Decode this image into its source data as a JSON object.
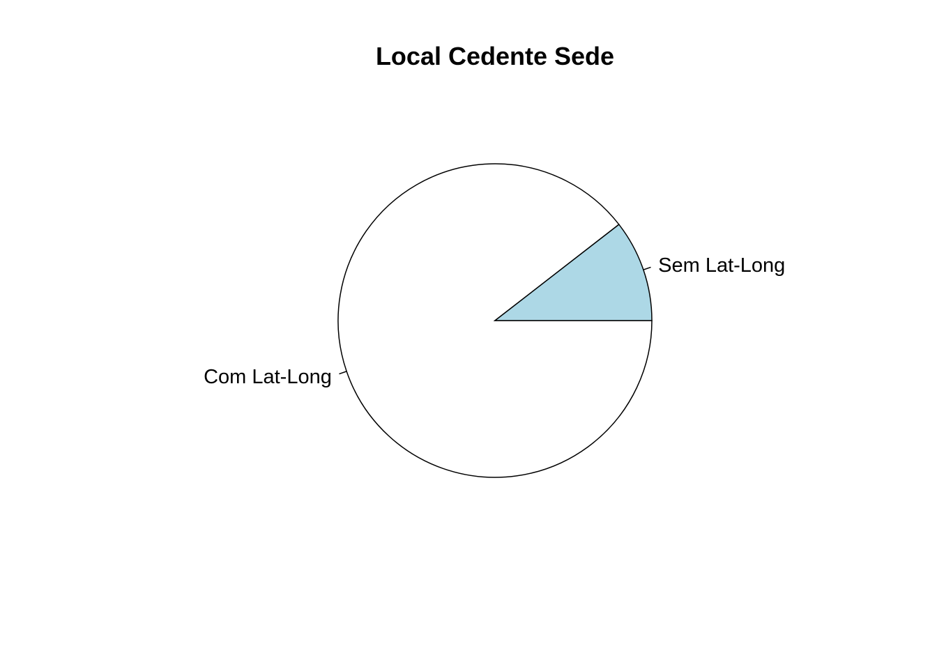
{
  "chart_data": {
    "type": "pie",
    "title": "Local Cedente Sede",
    "slices": [
      {
        "label": "Com Lat-Long",
        "value": 89.5,
        "color": "#ffffff"
      },
      {
        "label": "Sem Lat-Long",
        "value": 10.5,
        "color": "#add8e6"
      }
    ],
    "start_angle_deg": 0,
    "direction": "clockwise"
  }
}
